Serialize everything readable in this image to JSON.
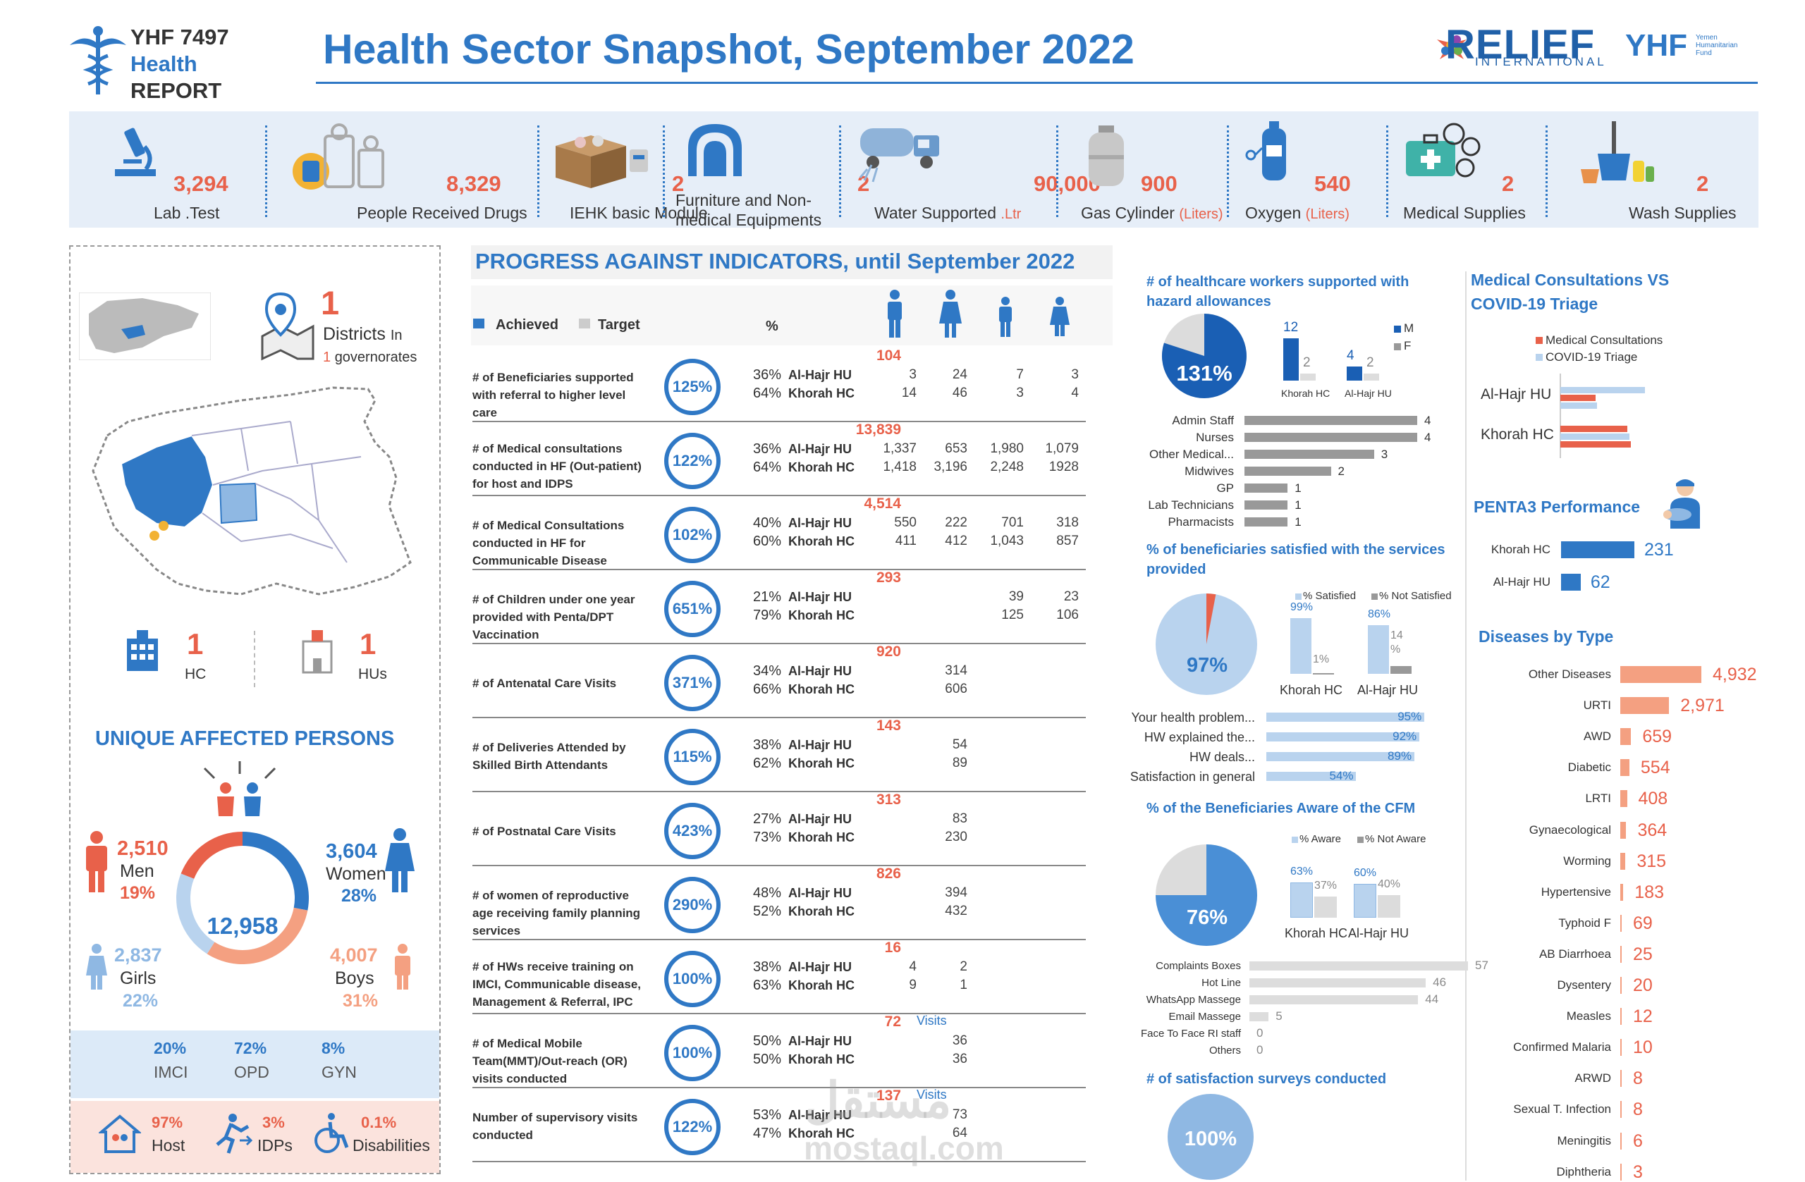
{
  "brand": {
    "code": "YHF 7497",
    "line2": "Health",
    "line3": "REPORT"
  },
  "title": "Health Sector Snapshot, September 2022",
  "logos": {
    "relief": "RELIEF",
    "relief_sub": "INTERNATIONAL",
    "yhf": "YHF",
    "yhf_sub": "Yemen Humanitarian Fund"
  },
  "kpis": [
    {
      "value": "3,294",
      "label": "Lab .Test",
      "icon": "microscope-icon"
    },
    {
      "value": "8,329",
      "label": "People Received Drugs",
      "icon": "drugs-icon"
    },
    {
      "value": "2",
      "label": "IEHK basic Module",
      "icon": "box-icon"
    },
    {
      "value": "2",
      "label": "Furniture and Non-",
      "label2": "medical Equipments",
      "icon": "furniture-icon"
    },
    {
      "value": "90,000",
      "label": "Water Supported ",
      "unit": ".Ltr",
      "icon": "water-truck-icon"
    },
    {
      "value": "900",
      "label": "Gas Cylinder ",
      "unit": "(Liters)",
      "icon": "gas-cylinder-icon"
    },
    {
      "value": "540",
      "label": "Oxygen ",
      "unit": "(Liters)",
      "icon": "oxygen-icon"
    },
    {
      "value": "2",
      "label": "Medical Supplies",
      "icon": "medical-kit-icon"
    },
    {
      "value": "2",
      "label": "Wash Supplies",
      "icon": "wash-icon"
    }
  ],
  "left": {
    "districts_value": "1",
    "districts_label": "Districts",
    "districts_in": "In",
    "gov_value": "1",
    "gov_label": "governorates",
    "hc_value": "1",
    "hc_label": "HC",
    "hu_value": "1",
    "hu_label": "HUs",
    "unique_title": "UNIQUE AFFECTED PERSONS",
    "total": "12,958",
    "men_value": "2,510",
    "men_label": "Men",
    "men_pct": "19%",
    "women_value": "3,604",
    "women_label": "Women",
    "women_pct": "28%",
    "girls_value": "2,837",
    "girls_label": "Girls",
    "girls_pct": "22%",
    "boys_value": "4,007",
    "boys_label": "Boys",
    "boys_pct": "31%",
    "imci_pct": "20%",
    "imci_label": "IMCI",
    "opd_pct": "72%",
    "opd_label": "OPD",
    "gyn_pct": "8%",
    "gyn_label": "GYN",
    "host_pct": "97%",
    "host_label": "Host",
    "idps_pct": "3%",
    "idps_label": "IDPs",
    "dis_pct": "0.1%",
    "dis_label": "Disabilities",
    "donut_shares": {
      "men": 19,
      "women": 28,
      "boys": 31,
      "girls": 22
    }
  },
  "progress": {
    "title": "PROGRESS AGAINST INDICATORS, until September 2022",
    "legend_achieved": "Achieved",
    "legend_target": "Target",
    "pct_header": "%",
    "visits_label": "Visits",
    "rows": [
      {
        "label": "# of Beneficiaries supported with referral to higher level care",
        "pct": "125%",
        "total": "104",
        "p1": "36%",
        "p2": "64%",
        "n1": "Al-Hajr HU",
        "n2": "Khorah HC",
        "c1": [
          "3",
          "24",
          "7",
          "3"
        ],
        "c2": [
          "14",
          "46",
          "3",
          "4"
        ]
      },
      {
        "label": "# of Medical consultations conducted in HF (Out-patient) for host and IDPS",
        "pct": "122%",
        "total": "13,839",
        "p1": "36%",
        "p2": "64%",
        "n1": "Al-Hajr HU",
        "n2": "Khorah HC",
        "c1": [
          "1,337",
          "653",
          "1,980",
          "1,079"
        ],
        "c2": [
          "1,418",
          "3,196",
          "2,248",
          "1928"
        ]
      },
      {
        "label": "# of Medical Consultations conducted in HF for Communicable Disease",
        "pct": "102%",
        "total": "4,514",
        "p1": "40%",
        "p2": "60%",
        "n1": "Al-Hajr HU",
        "n2": "Khorah HC",
        "c1": [
          "550",
          "222",
          "701",
          "318"
        ],
        "c2": [
          "411",
          "412",
          "1,043",
          "857"
        ]
      },
      {
        "label": "# of Children under one year provided with Penta/DPT Vaccination",
        "pct": "651%",
        "total": "293",
        "p1": "21%",
        "p2": "79%",
        "n1": "Al-Hajr HU",
        "n2": "Khorah HC",
        "c1": [
          "",
          "",
          "39",
          "23"
        ],
        "c2": [
          "",
          "",
          "125",
          "106"
        ]
      },
      {
        "label": "# of Antenatal Care Visits",
        "pct": "371%",
        "total": "920",
        "p1": "34%",
        "p2": "66%",
        "n1": "Al-Hajr HU",
        "n2": "Khorah HC",
        "c1": [
          "",
          "314",
          "",
          ""
        ],
        "c2": [
          "",
          "606",
          "",
          ""
        ]
      },
      {
        "label": "# of Deliveries Attended by Skilled Birth Attendants",
        "pct": "115%",
        "total": "143",
        "p1": "38%",
        "p2": "62%",
        "n1": "Al-Hajr HU",
        "n2": "Khorah HC",
        "c1": [
          "",
          "54",
          "",
          ""
        ],
        "c2": [
          "",
          "89",
          "",
          ""
        ]
      },
      {
        "label": "# of Postnatal Care Visits",
        "pct": "423%",
        "total": "313",
        "p1": "27%",
        "p2": "73%",
        "n1": "Al-Hajr HU",
        "n2": "Khorah HC",
        "c1": [
          "",
          "83",
          "",
          ""
        ],
        "c2": [
          "",
          "230",
          "",
          ""
        ]
      },
      {
        "label": "# of women of reproductive age receiving family planning services",
        "pct": "290%",
        "total": "826",
        "p1": "48%",
        "p2": "52%",
        "n1": "Al-Hajr HU",
        "n2": "Khorah HC",
        "c1": [
          "",
          "394",
          "",
          ""
        ],
        "c2": [
          "",
          "432",
          "",
          ""
        ]
      },
      {
        "label": "# of HWs receive training on IMCI, Communicable disease, Management & Referral, IPC",
        "pct": "100%",
        "total": "16",
        "p1": "38%",
        "p2": "63%",
        "n1": "Al-Hajr HU",
        "n2": "Khorah HC",
        "c1": [
          "4",
          "2",
          "",
          ""
        ],
        "c2": [
          "9",
          "1",
          "",
          ""
        ]
      },
      {
        "label": "# of Medical Mobile Team(MMT)/Out-reach (OR) visits conducted",
        "pct": "100%",
        "total": "72",
        "p1": "50%",
        "p2": "50%",
        "n1": "Al-Hajr HU",
        "n2": "Khorah HC",
        "c1": [
          "",
          "36",
          "",
          ""
        ],
        "c2": [
          "",
          "36",
          "",
          ""
        ]
      },
      {
        "label": "Number of supervisory visits conducted",
        "pct": "122%",
        "total": "137",
        "p1": "53%",
        "p2": "47%",
        "n1": "Al-Hajr HU",
        "n2": "Khorah HC",
        "c1": [
          "",
          "73",
          "",
          ""
        ],
        "c2": [
          "",
          "64",
          "",
          ""
        ]
      }
    ]
  },
  "hazard": {
    "title": "# of healthcare workers supported with hazard allowances",
    "pct": "131%",
    "legend_m": "M",
    "legend_f": "F",
    "khorah": {
      "m": 12,
      "f": 2,
      "label": "Khorah HC"
    },
    "alhajr": {
      "m": 4,
      "f": 2,
      "label": "Al-Hajr HU"
    },
    "staff": [
      {
        "label": "Admin Staff",
        "value": 4
      },
      {
        "label": "Nurses",
        "value": 4
      },
      {
        "label": "Other Medical...",
        "value": 3
      },
      {
        "label": "Midwives",
        "value": 2
      },
      {
        "label": "GP",
        "value": 1
      },
      {
        "label": "Lab Technicians",
        "value": 1
      },
      {
        "label": "Pharmacists",
        "value": 1
      }
    ]
  },
  "satisfied": {
    "title": "% of beneficiaries satisfied with the services provided",
    "pct": "97%",
    "legend_s": "% Satisfied",
    "legend_ns": "% Not Satisfied",
    "khorah": {
      "s": "99%",
      "ns": "1%",
      "label": "Khorah HC",
      "s_val": 99,
      "ns_val": 1
    },
    "alhajr": {
      "s": "86%",
      "ns": "14 %",
      "label": "Al-Hajr HU",
      "s_val": 86,
      "ns_val": 14
    },
    "items": [
      {
        "label": "Your health problem...",
        "value": "95%",
        "v": 95
      },
      {
        "label": "HW explained the...",
        "value": "92%",
        "v": 92
      },
      {
        "label": "HW deals...",
        "value": "89%",
        "v": 89
      },
      {
        "label": "Satisfaction in general",
        "value": "54%",
        "v": 54
      }
    ]
  },
  "cfm": {
    "title": "% of the Beneficiaries Aware of the CFM",
    "pct": "76%",
    "legend_a": "% Aware",
    "legend_na": "% Not Aware",
    "khorah": {
      "a": "63%",
      "na": "37%",
      "label": "Khorah HC",
      "a_val": 63,
      "na_val": 37
    },
    "alhajr": {
      "a": "60%",
      "na": "40%",
      "label": "Al-Hajr HU",
      "a_val": 60,
      "na_val": 40
    },
    "channels": [
      {
        "label": "Complaints Boxes",
        "value": 57
      },
      {
        "label": "Hot Line",
        "value": 46
      },
      {
        "label": "WhatsApp Massege",
        "value": 44
      },
      {
        "label": "Email Massege",
        "value": 5
      },
      {
        "label": "Face To Face RI staff",
        "value": 0
      },
      {
        "label": "Others",
        "value": 0
      }
    ]
  },
  "surveys": {
    "title": "# of satisfaction surveys conducted",
    "pct": "100%"
  },
  "consult": {
    "title1": "Medical Consultations VS",
    "title2": "COVID-19 Triage",
    "legend1": "Medical Consultations",
    "legend2": "COVID-19 Triage",
    "sites": [
      "Al-Hajr HU",
      "Khorah HC"
    ]
  },
  "penta": {
    "title": "PENTA3 Performance",
    "rows": [
      {
        "label": "Khorah HC",
        "value": 231
      },
      {
        "label": "Al-Hajr HU",
        "value": 62
      }
    ]
  },
  "diseases": {
    "title": "Diseases by Type",
    "rows": [
      {
        "label": "Other Diseases",
        "value": 4932,
        "text": "4,932"
      },
      {
        "label": "URTI",
        "value": 2971,
        "text": "2,971"
      },
      {
        "label": "AWD",
        "value": 659,
        "text": "659"
      },
      {
        "label": "Diabetic",
        "value": 554,
        "text": "554"
      },
      {
        "label": "LRTI",
        "value": 408,
        "text": "408"
      },
      {
        "label": "Gynaecological",
        "value": 364,
        "text": "364"
      },
      {
        "label": "Worming",
        "value": 315,
        "text": "315"
      },
      {
        "label": "Hypertensive",
        "value": 183,
        "text": "183"
      },
      {
        "label": "Typhoid F",
        "value": 69,
        "text": "69"
      },
      {
        "label": "AB Diarrhoea",
        "value": 25,
        "text": "25"
      },
      {
        "label": "Dysentery",
        "value": 20,
        "text": "20"
      },
      {
        "label": "Measles",
        "value": 12,
        "text": "12"
      },
      {
        "label": "Confirmed Malaria",
        "value": 10,
        "text": "10"
      },
      {
        "label": "ARWD",
        "value": 8,
        "text": "8"
      },
      {
        "label": "Sexual T. Infection",
        "value": 8,
        "text": "8"
      },
      {
        "label": "Meningitis",
        "value": 6,
        "text": "6"
      },
      {
        "label": "Diphtheria",
        "value": 3,
        "text": "3"
      }
    ]
  },
  "watermark": {
    "arabic": "مستقل",
    "latin": "mostaql.com"
  },
  "colors": {
    "blue": "#2f78c5",
    "orange": "#e8614a",
    "lightblue": "#b9d3ee",
    "grey": "#999999"
  }
}
